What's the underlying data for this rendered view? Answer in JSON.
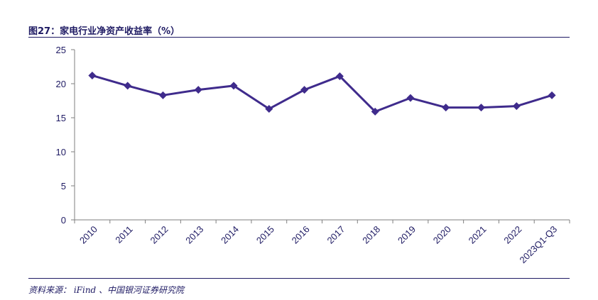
{
  "header": {
    "title": "图27：家电行业净资产收益率（%）"
  },
  "source": {
    "text": "资料来源：  iFind 、中国银河证券研究院"
  },
  "colors": {
    "line": "#3f2b8c",
    "text": "#1e1a63",
    "axis": "#7f7f7f"
  },
  "chart_data": {
    "type": "line",
    "title": "图27：家电行业净资产收益率（%）",
    "xlabel": "",
    "ylabel": "",
    "categories": [
      "2010",
      "2011",
      "2012",
      "2013",
      "2014",
      "2015",
      "2016",
      "2017",
      "2018",
      "2019",
      "2020",
      "2021",
      "2022",
      "2023Q1-Q3"
    ],
    "series": [
      {
        "values": [
          21.2,
          19.7,
          18.3,
          19.1,
          19.7,
          16.3,
          19.1,
          21.1,
          15.9,
          17.9,
          16.5,
          16.5,
          16.7,
          18.3
        ]
      }
    ],
    "ylim": [
      0,
      25
    ],
    "yticks": [
      0,
      5,
      10,
      15,
      20,
      25
    ],
    "grid": false,
    "legend": "none",
    "marker": "diamond"
  }
}
